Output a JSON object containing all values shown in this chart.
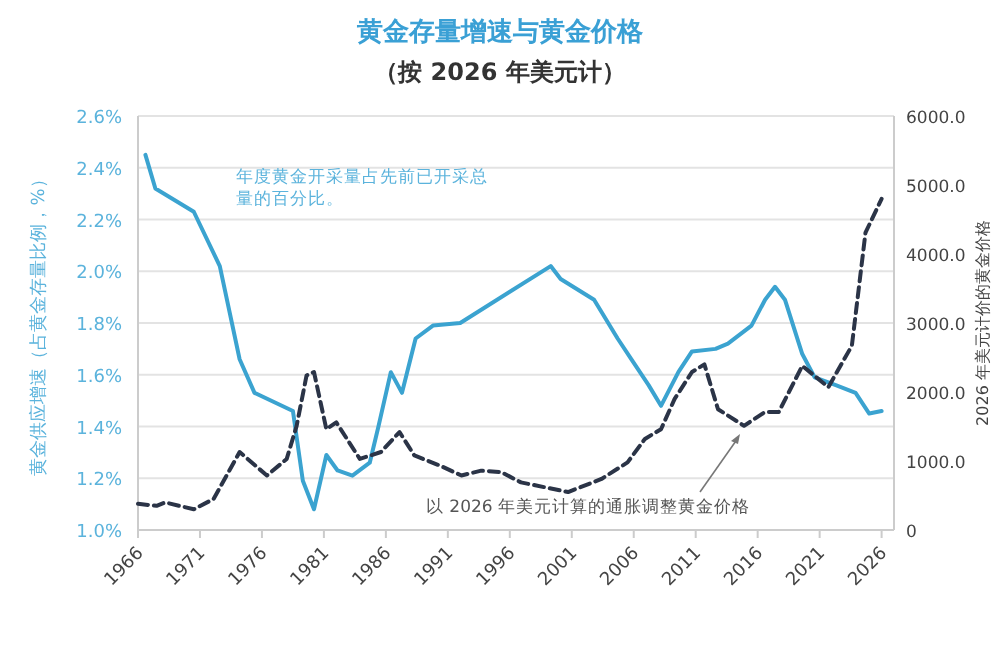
{
  "chart_data": {
    "type": "line",
    "title": "黄金存量增速与黄金价格",
    "subtitle": "（按 2026 年美元计）",
    "ylabel": "黄金供应增速（占黄金存量比例，%）",
    "y2label": "2026 年美元计价的黄金价格",
    "xlim": [
      1966,
      2027
    ],
    "xticks": [
      1966,
      1971,
      1976,
      1981,
      1986,
      1991,
      1996,
      2001,
      2006,
      2011,
      2016,
      2021,
      2026
    ],
    "ylim": [
      1.0,
      2.6
    ],
    "yticks": [
      {
        "value": 1.0,
        "label": "1.0%"
      },
      {
        "value": 1.2,
        "label": "1.2%"
      },
      {
        "value": 1.4,
        "label": "1.4%"
      },
      {
        "value": 1.6,
        "label": "1.6%"
      },
      {
        "value": 1.8,
        "label": "1.8%"
      },
      {
        "value": 2.0,
        "label": "2.0%"
      },
      {
        "value": 2.2,
        "label": "2.2%"
      },
      {
        "value": 2.4,
        "label": "2.4%"
      },
      {
        "value": 2.6,
        "label": "2.6%"
      }
    ],
    "y2lim": [
      0,
      6000
    ],
    "y2ticks": [
      0,
      {
        "value": 1000,
        "label": "1000.0"
      },
      {
        "value": 2000,
        "label": "2000.0"
      },
      {
        "value": 3000,
        "label": "3000.0"
      },
      {
        "value": 4000,
        "label": "4000.0"
      },
      {
        "value": 5000,
        "label": "5000.0"
      },
      {
        "value": 6000,
        "label": "6000.0"
      }
    ],
    "grid": "y",
    "series": [
      {
        "color": "#3ba3d0",
        "line_style": "solid",
        "x": [
          1966.6,
          1967.4,
          1970.5,
          1972.6,
          1974.2,
          1975.4,
          1978.5,
          1979.3,
          1980.2,
          1981.2,
          1982.1,
          1983.3,
          1984.7,
          1985.4,
          1986.4,
          1987.3,
          1988.4,
          1989.8,
          1992.0,
          1999.3,
          2000.1,
          2002.8,
          2004.7,
          2005.8,
          2007.2,
          2008.2,
          2009.6,
          2010.7,
          2012.6,
          2013.6,
          2015.5,
          2016.6,
          2017.4,
          2018.2,
          2019.6,
          2020.6,
          2022.3,
          2023.9,
          2025.0,
          2026.0
        ],
        "values": [
          2.45,
          2.32,
          2.23,
          2.02,
          1.66,
          1.53,
          1.46,
          1.19,
          1.08,
          1.29,
          1.23,
          1.21,
          1.26,
          1.4,
          1.61,
          1.53,
          1.74,
          1.79,
          1.8,
          2.02,
          1.97,
          1.89,
          1.74,
          1.66,
          1.56,
          1.48,
          1.61,
          1.69,
          1.7,
          1.72,
          1.79,
          1.89,
          1.94,
          1.89,
          1.68,
          1.59,
          1.56,
          1.53,
          1.45,
          1.46
        ]
      },
      {
        "color": "#2b3447",
        "line_style": "dashed",
        "axis": "y2",
        "x": [
          1966.0,
          1967.5,
          1968.2,
          1970.5,
          1972.1,
          1974.2,
          1976.4,
          1978.0,
          1978.8,
          1979.6,
          1980.2,
          1981.2,
          1982.0,
          1983.9,
          1985.6,
          1987.1,
          1988.3,
          1990.4,
          1992.1,
          1993.7,
          1995.3,
          1996.9,
          2000.7,
          2003.4,
          2005.5,
          2006.9,
          2008.2,
          2009.3,
          2010.7,
          2011.7,
          2012.8,
          2014.9,
          2016.6,
          2017.7,
          2019.6,
          2021.7,
          2023.6,
          2024.7,
          2026.0
        ],
        "values": [
          380,
          350,
          400,
          300,
          450,
          1130,
          790,
          1030,
          1510,
          2240,
          2290,
          1460,
          1560,
          1030,
          1130,
          1420,
          1080,
          930,
          790,
          860,
          840,
          690,
          550,
          740,
          980,
          1320,
          1460,
          1900,
          2290,
          2400,
          1750,
          1510,
          1710,
          1710,
          2380,
          2070,
          2670,
          4310,
          4800
        ]
      }
    ],
    "annotations": [
      "年度黄金开采量占先前已开采总量的百分比。",
      "以 2026 年美元计算的通胀调整黄金价格"
    ]
  }
}
